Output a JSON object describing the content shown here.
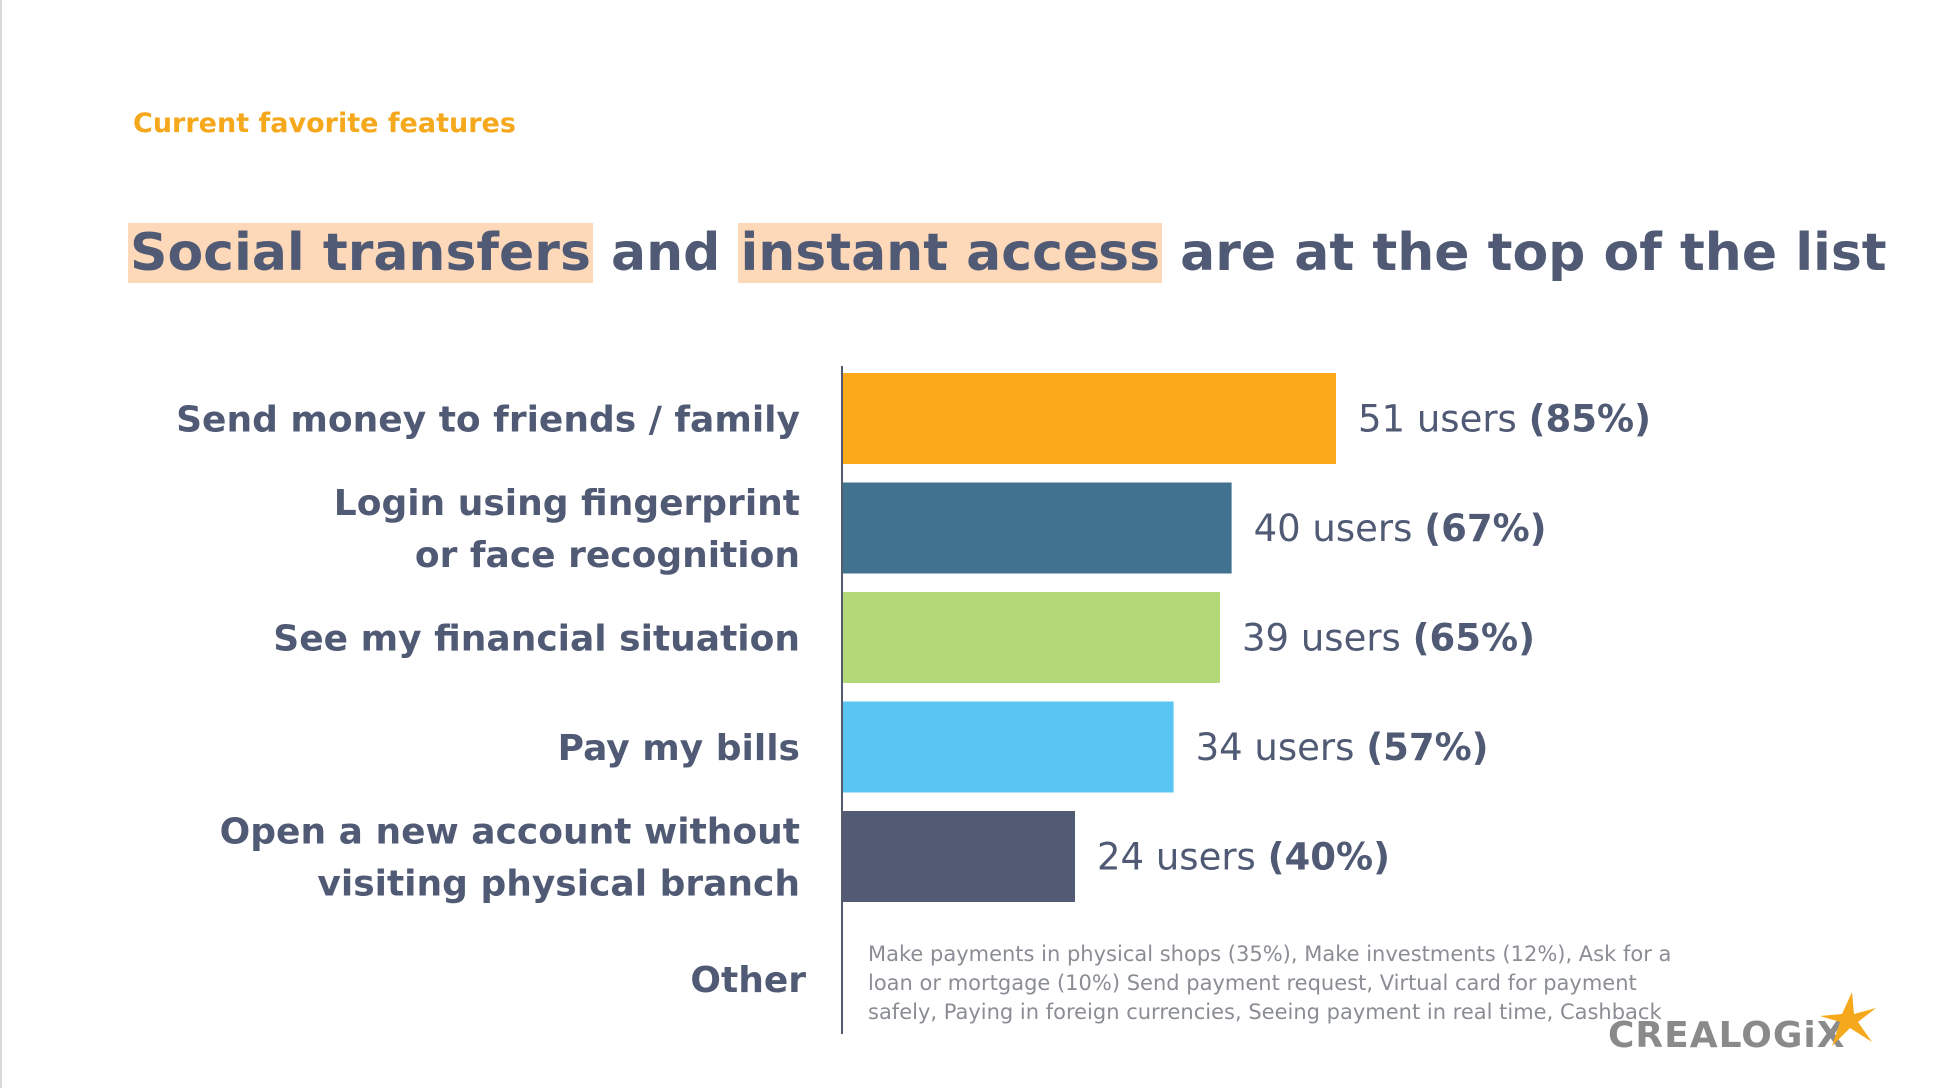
{
  "eyebrow": "Current favorite features",
  "headline": {
    "part1": "Social transfers",
    "part2": " and ",
    "part3": "instant access",
    "part4": " are at the top of the list"
  },
  "chart_data": {
    "type": "bar",
    "orientation": "horizontal",
    "title": "",
    "xlabel": "",
    "ylabel": "",
    "xlim": [
      0,
      100
    ],
    "grid": false,
    "categories": [
      [
        "Send money to friends / family"
      ],
      [
        "Login using fingerprint",
        "or face recognition"
      ],
      [
        "See my financial situation"
      ],
      [
        "Pay my bills"
      ],
      [
        "Open a new account without",
        "visiting physical branch"
      ]
    ],
    "users": [
      51,
      40,
      39,
      34,
      24
    ],
    "values": [
      85,
      67,
      65,
      57,
      40
    ],
    "data_labels": [
      {
        "users": "51 users",
        "pct": "(85%)"
      },
      {
        "users": "40 users",
        "pct": "(67%)"
      },
      {
        "users": "39 users",
        "pct": "(65%)"
      },
      {
        "users": "34 users",
        "pct": "(57%)"
      },
      {
        "users": "24 users",
        "pct": "(40%)"
      }
    ],
    "colors": [
      "#fba81a",
      "#41728f",
      "#b3d878",
      "#5bc5f2",
      "#535a73"
    ]
  },
  "other": {
    "label": "Other",
    "note": "Make payments in physical shops (35%), Make investments (12%), Ask for a loan or mortgage (10%) Send payment request, Virtual card for payment safely, Paying in foreign currencies, Seeing payment in real time, Cashback"
  },
  "logo": {
    "text": "CREALOGiX",
    "star_color": "#f5a81c",
    "text_color": "#8a8a8a"
  }
}
